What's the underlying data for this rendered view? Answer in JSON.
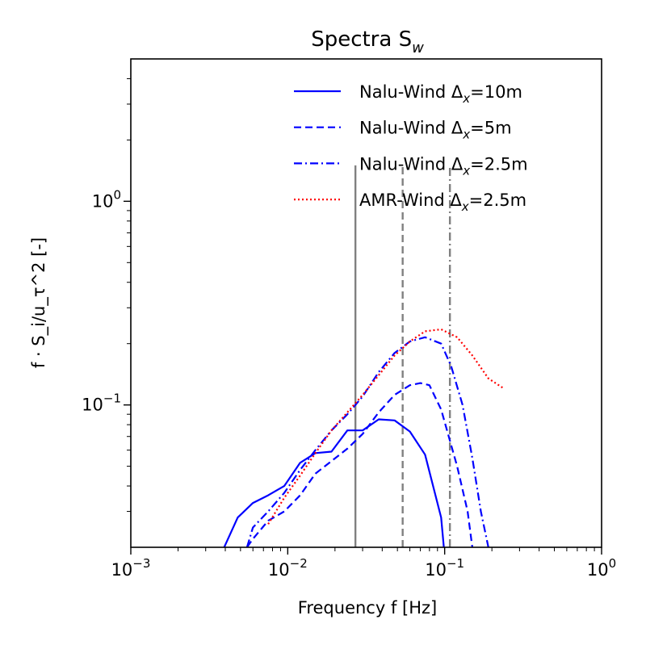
{
  "chart_data": {
    "type": "line",
    "title": "Spectra S",
    "title_subscript": "w",
    "xlabel": "Frequency f [Hz]",
    "ylabel": "f · S_i/u_τ^2 [-]",
    "xscale": "log",
    "yscale": "log",
    "xlim": [
      0.001,
      1
    ],
    "ylim": [
      0.02,
      5
    ],
    "legend_placement": "top-right",
    "grid": false,
    "x_ticks": [
      {
        "value": 0.001,
        "label": "10",
        "exp": "−3"
      },
      {
        "value": 0.01,
        "label": "10",
        "exp": "−2"
      },
      {
        "value": 0.1,
        "label": "10",
        "exp": "−1"
      },
      {
        "value": 1,
        "label": "10",
        "exp": "0"
      }
    ],
    "y_ticks": [
      {
        "value": 0.1,
        "label": "10",
        "exp": "−1"
      },
      {
        "value": 1,
        "label": "10",
        "exp": "0"
      }
    ],
    "series": [
      {
        "name": "Nalu-Wind Δx=10m",
        "legend_base": "Nalu-Wind Δ",
        "legend_sub": "x",
        "legend_tail": "=10m",
        "color": "#0000ff",
        "style": "solid",
        "x": [
          0.0037,
          0.0048,
          0.006,
          0.0075,
          0.0095,
          0.012,
          0.015,
          0.019,
          0.024,
          0.03,
          0.038,
          0.048,
          0.06,
          0.075,
          0.095,
          0.1
        ],
        "y": [
          0.018,
          0.028,
          0.033,
          0.036,
          0.04,
          0.052,
          0.058,
          0.059,
          0.075,
          0.075,
          0.085,
          0.084,
          0.074,
          0.057,
          0.028,
          0.018
        ]
      },
      {
        "name": "Nalu-Wind Δx=5m",
        "legend_base": "Nalu-Wind Δ",
        "legend_sub": "x",
        "legend_tail": "=5m",
        "color": "#0000ff",
        "style": "dashed",
        "x": [
          0.0055,
          0.006,
          0.0075,
          0.0095,
          0.012,
          0.015,
          0.019,
          0.024,
          0.03,
          0.038,
          0.048,
          0.06,
          0.07,
          0.08,
          0.095,
          0.12,
          0.14,
          0.15
        ],
        "y": [
          0.02,
          0.022,
          0.027,
          0.03,
          0.036,
          0.046,
          0.053,
          0.061,
          0.072,
          0.092,
          0.112,
          0.125,
          0.128,
          0.125,
          0.095,
          0.05,
          0.03,
          0.02
        ]
      },
      {
        "name": "Nalu-Wind Δx=2.5m",
        "legend_base": "Nalu-Wind Δ",
        "legend_sub": "x",
        "legend_tail": "=2.5m",
        "color": "#0000ff",
        "style": "dashdot",
        "x": [
          0.0055,
          0.006,
          0.0075,
          0.0095,
          0.012,
          0.015,
          0.019,
          0.024,
          0.03,
          0.038,
          0.048,
          0.06,
          0.075,
          0.095,
          0.11,
          0.13,
          0.15,
          0.17,
          0.19
        ],
        "y": [
          0.02,
          0.025,
          0.03,
          0.037,
          0.048,
          0.06,
          0.075,
          0.09,
          0.11,
          0.145,
          0.18,
          0.205,
          0.215,
          0.2,
          0.155,
          0.1,
          0.055,
          0.03,
          0.02
        ]
      },
      {
        "name": "AMR-Wind Δx=2.5m",
        "legend_base": "AMR-Wind Δ",
        "legend_sub": "x",
        "legend_tail": "=2.5m",
        "color": "#ff0000",
        "style": "dotted",
        "x": [
          0.0075,
          0.0095,
          0.012,
          0.015,
          0.019,
          0.024,
          0.03,
          0.038,
          0.048,
          0.06,
          0.075,
          0.095,
          0.12,
          0.15,
          0.19,
          0.24
        ],
        "y": [
          0.026,
          0.035,
          0.045,
          0.058,
          0.075,
          0.092,
          0.112,
          0.14,
          0.175,
          0.205,
          0.23,
          0.235,
          0.215,
          0.175,
          0.135,
          0.12
        ]
      }
    ],
    "vertical_lines": [
      {
        "x": 0.027,
        "ymax": 1.5,
        "style": "solid",
        "color": "#808080"
      },
      {
        "x": 0.054,
        "ymax": 1.5,
        "style": "dashed",
        "color": "#808080"
      },
      {
        "x": 0.108,
        "ymax": 1.5,
        "style": "dashdot",
        "color": "#808080"
      }
    ]
  }
}
